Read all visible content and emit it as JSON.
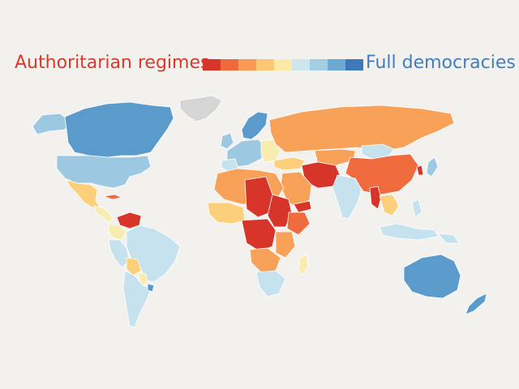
{
  "legend": {
    "left_label": "Authoritarian regimes",
    "right_label": "Full democracies",
    "left_color": "#d93a2b",
    "right_color": "#3f7fbe",
    "scale_colors": [
      "#d7352a",
      "#f0693c",
      "#f89a55",
      "#fcc873",
      "#fbe9a6",
      "#cfe6ef",
      "#a3cde3",
      "#6ea9d3",
      "#3e78b8"
    ]
  },
  "map_colors": {
    "authoritarian_dark": "#d7352a",
    "authoritarian": "#ef6a3d",
    "hybrid": "#f8a158",
    "flawed_low": "#fcd07a",
    "flawed": "#f9ecb0",
    "democracy_light": "#c6e2ee",
    "democracy": "#9dc8e2",
    "full_democracy": "#5b9bcc",
    "no_data": "#d5d5d5"
  }
}
